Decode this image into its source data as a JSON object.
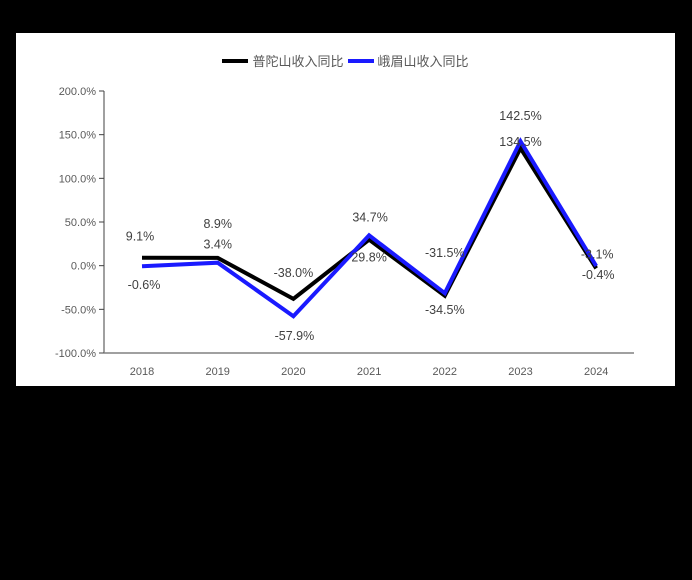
{
  "chart_data": {
    "type": "line",
    "title": "",
    "xlabel": "",
    "ylabel": "",
    "categories": [
      "2018",
      "2019",
      "2020",
      "2021",
      "2022",
      "2023",
      "2024"
    ],
    "series": [
      {
        "name": "普陀山收入同比",
        "color": "#000000",
        "values": [
          9.1,
          8.9,
          -38.0,
          29.8,
          -34.5,
          134.5,
          -3.1
        ],
        "labels": [
          "9.1%",
          "8.9%",
          "-38.0%",
          "29.8%",
          "-34.5%",
          "134.5%",
          "-3.1%"
        ]
      },
      {
        "name": "峨眉山收入同比",
        "color": "#1a1aff",
        "values": [
          -0.6,
          3.4,
          -57.9,
          34.7,
          -31.5,
          142.5,
          -0.4
        ],
        "labels": [
          "-0.6%",
          "3.4%",
          "-57.9%",
          "34.7%",
          "-31.5%",
          "142.5%",
          "-0.4%"
        ]
      }
    ],
    "ylim": [
      -100,
      200
    ],
    "yticks": [
      200,
      150,
      100,
      50,
      0,
      -50,
      -100
    ],
    "ytick_labels": [
      "200.0%",
      "150.0%",
      "100.0%",
      "50.0%",
      "0.0%",
      "-50.0%",
      "-100.0%"
    ],
    "grid": false,
    "legend_position": "top"
  },
  "legend": {
    "items": [
      {
        "label": "普陀山收入同比",
        "color": "#000000"
      },
      {
        "label": "峨眉山收入同比",
        "color": "#1a1aff"
      }
    ]
  }
}
